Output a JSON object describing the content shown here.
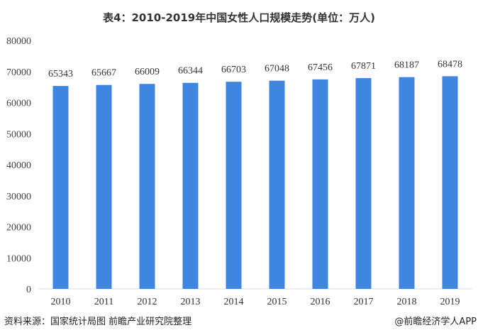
{
  "chart_data": {
    "type": "bar",
    "title": "表4：2010-2019年中国女性人口规模走势(单位：万人)",
    "categories": [
      "2010",
      "2011",
      "2012",
      "2013",
      "2014",
      "2015",
      "2016",
      "2017",
      "2018",
      "2019"
    ],
    "values": [
      65343,
      65667,
      66009,
      66344,
      66703,
      67048,
      67456,
      67871,
      68187,
      68478
    ],
    "ylim": [
      0,
      80000
    ],
    "yticks": [
      0,
      10000,
      20000,
      30000,
      40000,
      50000,
      60000,
      70000,
      80000
    ],
    "xlabel": "",
    "ylabel": "",
    "bar_color": "#3f86e0",
    "grid": false,
    "legend": "none"
  },
  "footer": {
    "source": "资料来源：国家统计局图 前瞻产业研究院整理",
    "credit": "@前瞻经济学人APP"
  }
}
